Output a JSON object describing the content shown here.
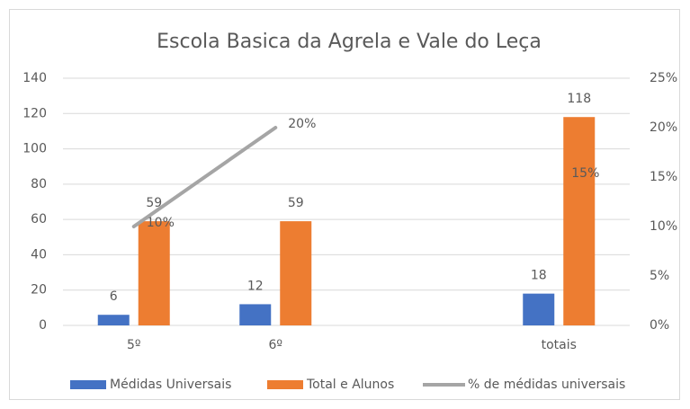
{
  "chart_data": {
    "type": "bar",
    "title": "Escola Basica da Agrela e Vale do Leça",
    "categories": [
      "5º",
      "6º",
      null,
      "totais"
    ],
    "series": [
      {
        "name": "Médidas Universais",
        "color": "#4472c4",
        "values": [
          6,
          12,
          null,
          18
        ]
      },
      {
        "name": "Total e Alunos",
        "color": "#ed7d31",
        "values": [
          59,
          59,
          null,
          118
        ]
      },
      {
        "name": "% de médidas universais",
        "color": "#a5a5a5",
        "type": "line",
        "axis": "y2",
        "values": [
          10,
          20,
          null,
          15
        ],
        "value_labels": [
          "10%",
          "20%",
          null,
          "15%"
        ]
      }
    ],
    "ylim": [
      0,
      140
    ],
    "yticks": [
      0,
      20,
      40,
      60,
      80,
      100,
      120,
      140
    ],
    "y2lim": [
      0,
      25
    ],
    "y2ticks": [
      {
        "value": 0,
        "label": "0%"
      },
      {
        "value": 5,
        "label": "5%"
      },
      {
        "value": 10,
        "label": "10%"
      },
      {
        "value": 15,
        "label": "15%"
      },
      {
        "value": 20,
        "label": "20%"
      },
      {
        "value": 25,
        "label": "25%"
      }
    ],
    "grid": true,
    "legend": "bottom"
  }
}
